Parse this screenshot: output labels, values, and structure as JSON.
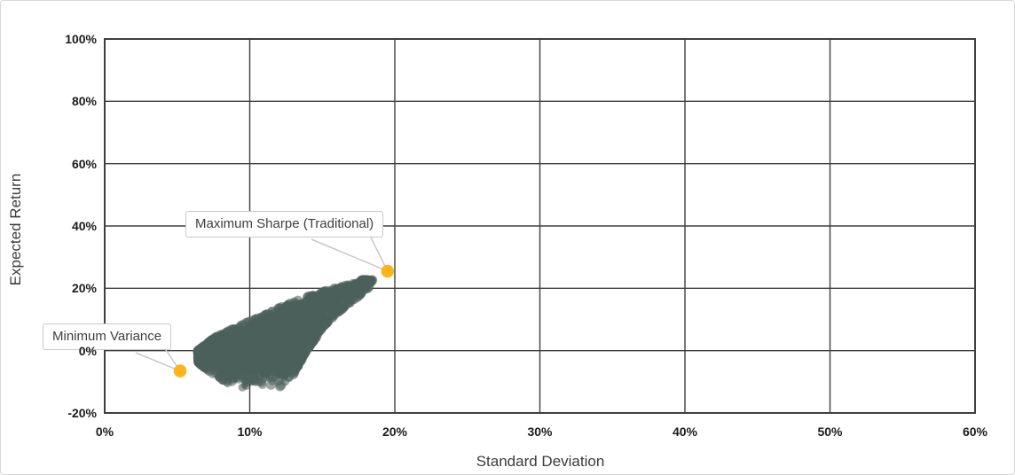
{
  "chart": {
    "y_axis": {
      "label": "Expected Return",
      "unit": "%",
      "min": -20,
      "max": 100,
      "step": 20,
      "ticks": [
        "100%",
        "80%",
        "60%",
        "40%",
        "20%",
        "0%",
        "-20%"
      ]
    },
    "x_axis": {
      "label": "Standard Deviation",
      "unit": "%",
      "min": 0,
      "max": 60,
      "step": 10,
      "ticks": [
        "0%",
        "10%",
        "20%",
        "30%",
        "40%",
        "50%",
        "60%"
      ]
    },
    "annotations": [
      {
        "label": "Maximum Sharpe (Traditional)",
        "std_dev_pct": 19.5,
        "expected_return_pct": 25.5
      },
      {
        "label": "Minimum Variance",
        "std_dev_pct": 5.2,
        "expected_return_pct": -6.5
      }
    ]
  },
  "chart_data": {
    "type": "scatter",
    "title": "",
    "xlabel": "Standard Deviation",
    "ylabel": "Expected Return",
    "xlim": [
      0,
      60
    ],
    "ylim": [
      -20,
      100
    ],
    "x_tick_step": 10,
    "y_tick_step": 20,
    "grid": true,
    "legend": "none",
    "series": [
      {
        "name": "Simulated portfolios cloud",
        "kind": "cloud",
        "color": "#4d615b",
        "opacity": 0.55,
        "n_points": 2800,
        "seed": 42,
        "marker_radius_px": [
          4.0,
          5.8
        ],
        "y_range_pct": [
          -13.5,
          22.6
        ],
        "spine_x_by_y": [
          [
            -13,
            10.8
          ],
          [
            -8,
            10.2
          ],
          [
            -4,
            9.8
          ],
          [
            0,
            10.0
          ],
          [
            4,
            10.9
          ],
          [
            8,
            12.1
          ],
          [
            12,
            13.5
          ],
          [
            16,
            15.1
          ],
          [
            20,
            16.9
          ],
          [
            22.5,
            18.0
          ]
        ],
        "half_width_by_y": [
          [
            -13,
            1.2
          ],
          [
            -8,
            2.2
          ],
          [
            -4,
            2.9
          ],
          [
            0,
            3.1
          ],
          [
            4,
            2.9
          ],
          [
            8,
            2.4
          ],
          [
            12,
            2.0
          ],
          [
            16,
            1.6
          ],
          [
            20,
            1.0
          ],
          [
            22.5,
            0.35
          ]
        ],
        "shape_note": "dense comet: core near (10%, 0%) tapering up-right to tip near (18%, 22.5%)"
      },
      {
        "name": "Maximum Sharpe (Traditional)",
        "kind": "highlight-point",
        "color": "#FBB41B",
        "points": [
          [
            19.5,
            25.5
          ]
        ]
      },
      {
        "name": "Minimum Variance",
        "kind": "highlight-point",
        "color": "#FBB41B",
        "points": [
          [
            5.2,
            -6.5
          ]
        ]
      }
    ],
    "styles": {
      "grid_color": "#3f3f3f",
      "plot_border_color": "#3f3f3f",
      "highlight_color": "#FBB41B",
      "cloud_color": "#4d615b",
      "leader_line_color": "#c9c9c9",
      "tick_text_color": "#1c1c1c",
      "axis_title_color": "#3c3c3c",
      "frame_border_color": "#d8d8d8",
      "background": "#ffffff"
    }
  }
}
